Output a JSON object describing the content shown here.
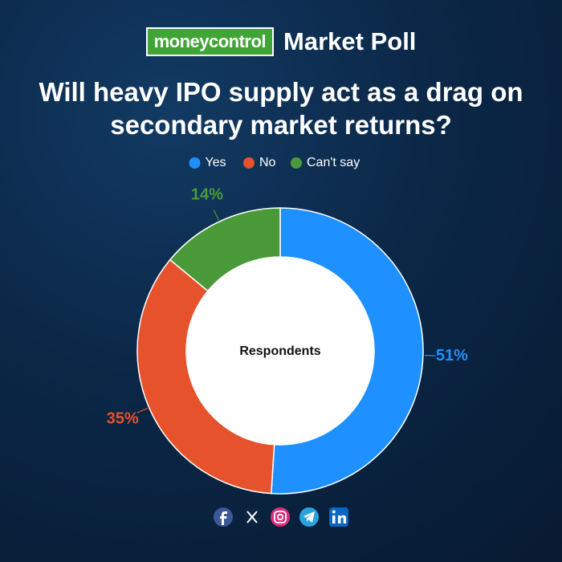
{
  "header": {
    "brand": "moneycontrol",
    "label": "Market Poll"
  },
  "chart_data": {
    "type": "doughnut",
    "title": "Will heavy IPO supply act as a drag on secondary market returns?",
    "center_label": "Respondents",
    "categories": [
      "Yes",
      "No",
      "Can't say"
    ],
    "values": [
      51,
      35,
      14
    ],
    "value_labels": [
      "51%",
      "35%",
      "14%"
    ],
    "colors": [
      "#1e90ff",
      "#e5522b",
      "#4b9a39"
    ],
    "legend": "top"
  }
}
